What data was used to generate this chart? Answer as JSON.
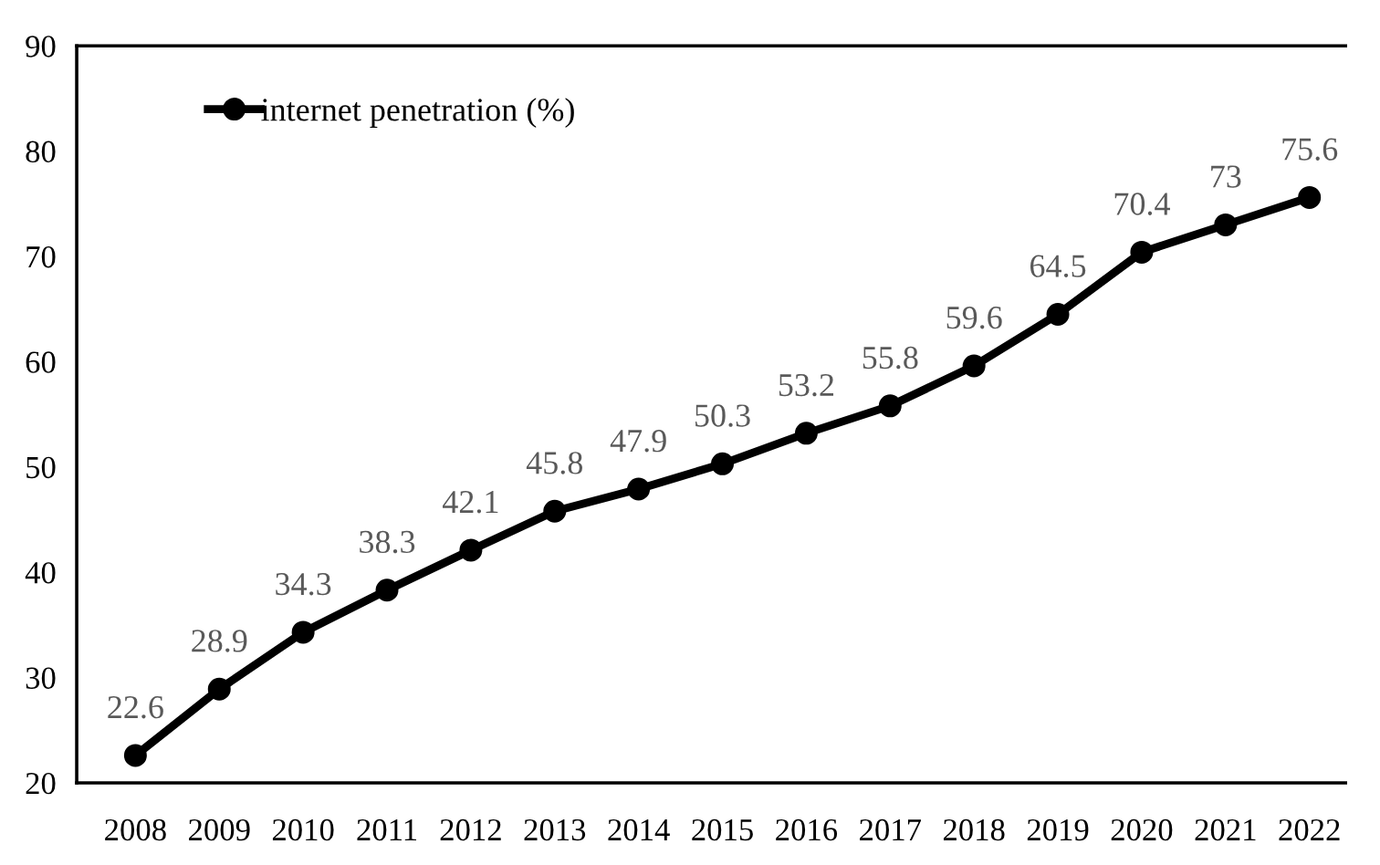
{
  "chart_data": {
    "type": "line",
    "categories": [
      "2008",
      "2009",
      "2010",
      "2011",
      "2012",
      "2013",
      "2014",
      "2015",
      "2016",
      "2017",
      "2018",
      "2019",
      "2020",
      "2021",
      "2022"
    ],
    "series": [
      {
        "name": "internet penetration (%)",
        "color": "#000000",
        "values": [
          22.6,
          28.9,
          34.3,
          38.3,
          42.1,
          45.8,
          47.9,
          50.3,
          53.2,
          55.8,
          59.6,
          64.5,
          70.4,
          73,
          75.6
        ]
      }
    ],
    "ylim": [
      20,
      90
    ],
    "yticks": [
      20,
      30,
      40,
      50,
      60,
      70,
      80,
      90
    ],
    "data_labels": true,
    "marker": "circle",
    "line_style": "solid",
    "legend": "top left",
    "grid": false
  }
}
